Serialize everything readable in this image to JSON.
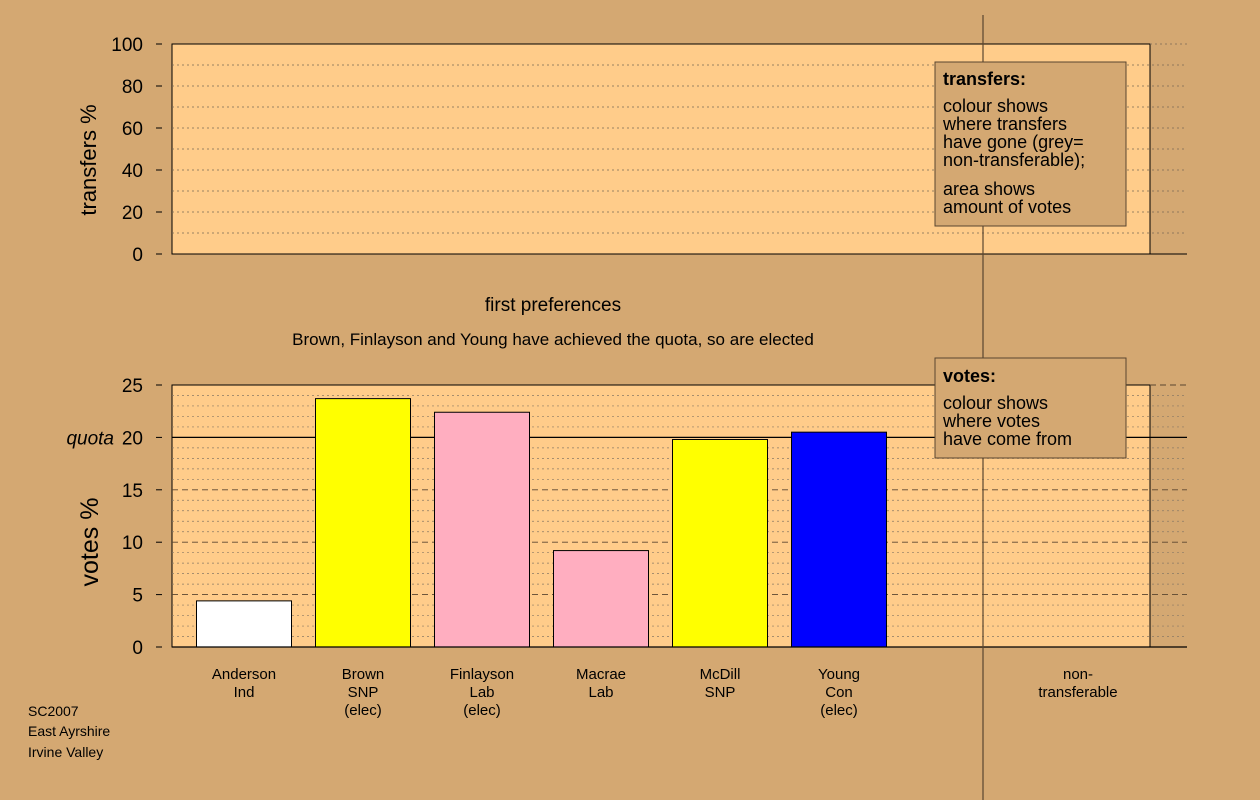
{
  "colors": {
    "background": "#d4a872",
    "plot_bg": "#ffcc8a",
    "Ind": "#ffffff",
    "SNP": "#ffff00",
    "Lab": "#ffaec0",
    "Con": "#0000ff",
    "non_transferable": "#b0b0b0"
  },
  "transfers_box": {
    "title": "transfers:",
    "lines1": [
      "colour shows",
      "where transfers",
      "have gone (grey=",
      "non-transferable);"
    ],
    "lines2": [
      "area shows",
      "amount of votes"
    ]
  },
  "votes_box": {
    "title": "votes:",
    "lines": [
      "colour shows",
      "where votes",
      "have come from"
    ]
  },
  "stage_title": "first preferences",
  "stage_subtitle": "Brown, Finlayson and Young have achieved the quota, so are elected",
  "quota_label": "quota",
  "footer": [
    "SC2007",
    "East Ayrshire",
    "Irvine Valley"
  ],
  "chart_data": [
    {
      "type": "bar",
      "ylabel": "transfers %",
      "ylim": [
        0,
        100
      ],
      "yticks": [
        0,
        20,
        40,
        60,
        80,
        100
      ],
      "values": []
    },
    {
      "type": "bar",
      "ylabel": "votes %",
      "ylim": [
        0,
        25
      ],
      "yticks": [
        0,
        5,
        10,
        15,
        20,
        25
      ],
      "quota": 20,
      "categories": [
        {
          "lines": [
            "Anderson",
            "Ind"
          ],
          "value": 4.4,
          "color": "#ffffff"
        },
        {
          "lines": [
            "Brown",
            "SNP",
            "(elec)"
          ],
          "value": 23.7,
          "color": "#ffff00"
        },
        {
          "lines": [
            "Finlayson",
            "Lab",
            "(elec)"
          ],
          "value": 22.4,
          "color": "#ffaec0"
        },
        {
          "lines": [
            "Macrae",
            "Lab"
          ],
          "value": 9.2,
          "color": "#ffaec0"
        },
        {
          "lines": [
            "McDill",
            "SNP"
          ],
          "value": 19.8,
          "color": "#ffff00"
        },
        {
          "lines": [
            "Young",
            "Con",
            "(elec)"
          ],
          "value": 20.5,
          "color": "#0000ff"
        }
      ],
      "extra_category": [
        "non-",
        "transferable"
      ]
    }
  ]
}
